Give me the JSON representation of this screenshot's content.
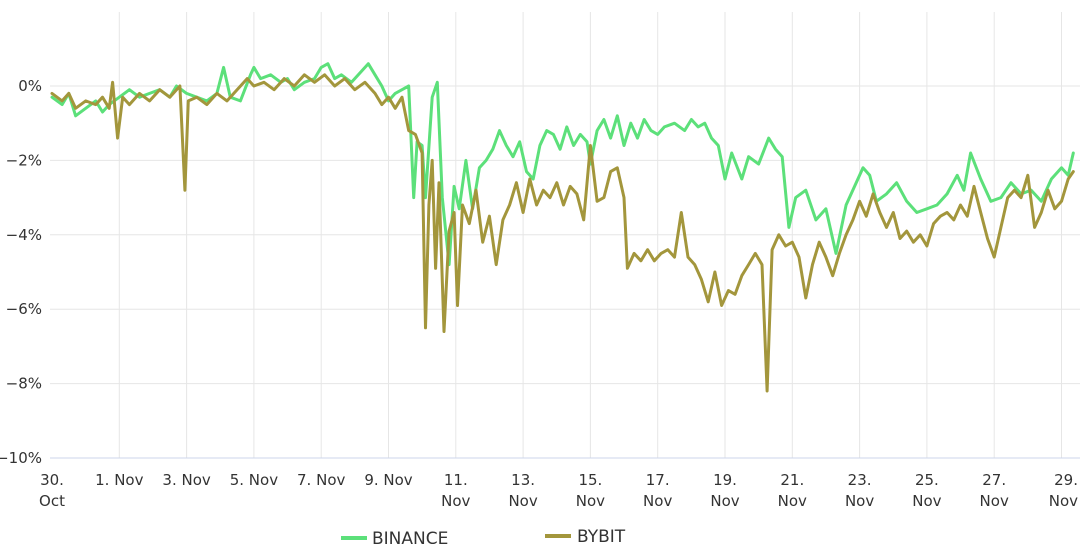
{
  "chart_data": {
    "type": "line",
    "title": "",
    "xlabel": "",
    "ylabel": "",
    "ylim": [
      -10,
      2
    ],
    "y_ticks": [
      0,
      -2,
      -4,
      -6,
      -8,
      -10
    ],
    "y_tick_labels": [
      "0%",
      "−2%",
      "−4%",
      "−6%",
      "−8%",
      "−10%"
    ],
    "x_ticks": [
      {
        "day": 0,
        "line1": "30.",
        "line2": "Oct"
      },
      {
        "day": 2,
        "line1": "1. Nov",
        "line2": ""
      },
      {
        "day": 4,
        "line1": "3. Nov",
        "line2": ""
      },
      {
        "day": 6,
        "line1": "5. Nov",
        "line2": ""
      },
      {
        "day": 8,
        "line1": "7. Nov",
        "line2": ""
      },
      {
        "day": 10,
        "line1": "9. Nov",
        "line2": ""
      },
      {
        "day": 12,
        "line1": "11.",
        "line2": "Nov"
      },
      {
        "day": 14,
        "line1": "13.",
        "line2": "Nov"
      },
      {
        "day": 16,
        "line1": "15.",
        "line2": "Nov"
      },
      {
        "day": 18,
        "line1": "17.",
        "line2": "Nov"
      },
      {
        "day": 20,
        "line1": "19.",
        "line2": "Nov"
      },
      {
        "day": 22,
        "line1": "21.",
        "line2": "Nov"
      },
      {
        "day": 24,
        "line1": "23.",
        "line2": "Nov"
      },
      {
        "day": 26,
        "line1": "25.",
        "line2": "Nov"
      },
      {
        "day": 28,
        "line1": "27.",
        "line2": "Nov"
      },
      {
        "day": 30,
        "line1": "29.",
        "line2": "Nov"
      }
    ],
    "grid": true,
    "legend": "bottom",
    "series": [
      {
        "name": "BINANCE",
        "color": "#5ce07a",
        "points": [
          [
            0.0,
            -0.3
          ],
          [
            0.3,
            -0.5
          ],
          [
            0.5,
            -0.2
          ],
          [
            0.7,
            -0.8
          ],
          [
            1.0,
            -0.6
          ],
          [
            1.3,
            -0.4
          ],
          [
            1.5,
            -0.7
          ],
          [
            1.7,
            -0.5
          ],
          [
            2.0,
            -0.3
          ],
          [
            2.3,
            -0.1
          ],
          [
            2.6,
            -0.3
          ],
          [
            2.9,
            -0.2
          ],
          [
            3.2,
            -0.1
          ],
          [
            3.5,
            -0.3
          ],
          [
            3.7,
            0.0
          ],
          [
            4.0,
            -0.2
          ],
          [
            4.3,
            -0.3
          ],
          [
            4.6,
            -0.4
          ],
          [
            4.9,
            -0.2
          ],
          [
            5.1,
            0.5
          ],
          [
            5.3,
            -0.3
          ],
          [
            5.6,
            -0.4
          ],
          [
            5.9,
            0.3
          ],
          [
            6.0,
            0.5
          ],
          [
            6.2,
            0.2
          ],
          [
            6.5,
            0.3
          ],
          [
            6.8,
            0.1
          ],
          [
            7.0,
            0.2
          ],
          [
            7.2,
            -0.1
          ],
          [
            7.5,
            0.1
          ],
          [
            7.8,
            0.2
          ],
          [
            8.0,
            0.5
          ],
          [
            8.2,
            0.6
          ],
          [
            8.4,
            0.2
          ],
          [
            8.6,
            0.3
          ],
          [
            8.9,
            0.1
          ],
          [
            9.2,
            0.4
          ],
          [
            9.4,
            0.6
          ],
          [
            9.6,
            0.3
          ],
          [
            9.8,
            0.0
          ],
          [
            10.0,
            -0.4
          ],
          [
            10.2,
            -0.2
          ],
          [
            10.4,
            -0.1
          ],
          [
            10.6,
            0.0
          ],
          [
            10.75,
            -3.0
          ],
          [
            10.85,
            -1.5
          ],
          [
            11.0,
            -1.6
          ],
          [
            11.1,
            -3.0
          ],
          [
            11.3,
            -0.3
          ],
          [
            11.45,
            0.1
          ],
          [
            11.6,
            -3.0
          ],
          [
            11.8,
            -4.8
          ],
          [
            11.95,
            -2.7
          ],
          [
            12.1,
            -3.3
          ],
          [
            12.3,
            -2.0
          ],
          [
            12.5,
            -3.3
          ],
          [
            12.7,
            -2.2
          ],
          [
            12.9,
            -2.0
          ],
          [
            13.1,
            -1.7
          ],
          [
            13.3,
            -1.2
          ],
          [
            13.5,
            -1.6
          ],
          [
            13.7,
            -1.9
          ],
          [
            13.9,
            -1.5
          ],
          [
            14.1,
            -2.3
          ],
          [
            14.3,
            -2.5
          ],
          [
            14.5,
            -1.6
          ],
          [
            14.7,
            -1.2
          ],
          [
            14.9,
            -1.3
          ],
          [
            15.1,
            -1.7
          ],
          [
            15.3,
            -1.1
          ],
          [
            15.5,
            -1.6
          ],
          [
            15.7,
            -1.3
          ],
          [
            15.9,
            -1.5
          ],
          [
            16.0,
            -2.1
          ],
          [
            16.2,
            -1.2
          ],
          [
            16.4,
            -0.9
          ],
          [
            16.6,
            -1.4
          ],
          [
            16.8,
            -0.8
          ],
          [
            17.0,
            -1.6
          ],
          [
            17.2,
            -1.0
          ],
          [
            17.4,
            -1.4
          ],
          [
            17.6,
            -0.9
          ],
          [
            17.8,
            -1.2
          ],
          [
            18.0,
            -1.3
          ],
          [
            18.2,
            -1.1
          ],
          [
            18.5,
            -1.0
          ],
          [
            18.8,
            -1.2
          ],
          [
            19.0,
            -0.9
          ],
          [
            19.2,
            -1.1
          ],
          [
            19.4,
            -1.0
          ],
          [
            19.6,
            -1.4
          ],
          [
            19.8,
            -1.6
          ],
          [
            20.0,
            -2.5
          ],
          [
            20.2,
            -1.8
          ],
          [
            20.5,
            -2.5
          ],
          [
            20.7,
            -1.9
          ],
          [
            21.0,
            -2.1
          ],
          [
            21.3,
            -1.4
          ],
          [
            21.5,
            -1.7
          ],
          [
            21.7,
            -1.9
          ],
          [
            21.9,
            -3.8
          ],
          [
            22.1,
            -3.0
          ],
          [
            22.4,
            -2.8
          ],
          [
            22.7,
            -3.6
          ],
          [
            23.0,
            -3.3
          ],
          [
            23.3,
            -4.5
          ],
          [
            23.6,
            -3.2
          ],
          [
            23.9,
            -2.6
          ],
          [
            24.1,
            -2.2
          ],
          [
            24.3,
            -2.4
          ],
          [
            24.5,
            -3.1
          ],
          [
            24.8,
            -2.9
          ],
          [
            25.1,
            -2.6
          ],
          [
            25.4,
            -3.1
          ],
          [
            25.7,
            -3.4
          ],
          [
            26.0,
            -3.3
          ],
          [
            26.3,
            -3.2
          ],
          [
            26.6,
            -2.9
          ],
          [
            26.9,
            -2.4
          ],
          [
            27.1,
            -2.8
          ],
          [
            27.3,
            -1.8
          ],
          [
            27.6,
            -2.5
          ],
          [
            27.9,
            -3.1
          ],
          [
            28.2,
            -3.0
          ],
          [
            28.5,
            -2.6
          ],
          [
            28.8,
            -2.9
          ],
          [
            29.1,
            -2.8
          ],
          [
            29.4,
            -3.1
          ],
          [
            29.7,
            -2.5
          ],
          [
            30.0,
            -2.2
          ],
          [
            30.2,
            -2.4
          ],
          [
            30.35,
            -1.8
          ]
        ]
      },
      {
        "name": "BYBIT",
        "color": "#a3963c",
        "points": [
          [
            0.0,
            -0.2
          ],
          [
            0.3,
            -0.4
          ],
          [
            0.5,
            -0.2
          ],
          [
            0.7,
            -0.6
          ],
          [
            1.0,
            -0.4
          ],
          [
            1.3,
            -0.5
          ],
          [
            1.5,
            -0.3
          ],
          [
            1.7,
            -0.6
          ],
          [
            1.8,
            0.1
          ],
          [
            1.95,
            -1.4
          ],
          [
            2.1,
            -0.3
          ],
          [
            2.3,
            -0.5
          ],
          [
            2.6,
            -0.2
          ],
          [
            2.9,
            -0.4
          ],
          [
            3.2,
            -0.1
          ],
          [
            3.5,
            -0.3
          ],
          [
            3.8,
            0.0
          ],
          [
            3.95,
            -2.8
          ],
          [
            4.05,
            -0.4
          ],
          [
            4.3,
            -0.3
          ],
          [
            4.6,
            -0.5
          ],
          [
            4.9,
            -0.2
          ],
          [
            5.2,
            -0.4
          ],
          [
            5.5,
            -0.1
          ],
          [
            5.8,
            0.2
          ],
          [
            6.0,
            0.0
          ],
          [
            6.3,
            0.1
          ],
          [
            6.6,
            -0.1
          ],
          [
            6.9,
            0.2
          ],
          [
            7.2,
            0.0
          ],
          [
            7.5,
            0.3
          ],
          [
            7.8,
            0.1
          ],
          [
            8.1,
            0.3
          ],
          [
            8.4,
            0.0
          ],
          [
            8.7,
            0.2
          ],
          [
            9.0,
            -0.1
          ],
          [
            9.3,
            0.1
          ],
          [
            9.6,
            -0.2
          ],
          [
            9.8,
            -0.5
          ],
          [
            10.0,
            -0.3
          ],
          [
            10.2,
            -0.6
          ],
          [
            10.4,
            -0.3
          ],
          [
            10.6,
            -1.2
          ],
          [
            10.8,
            -1.3
          ],
          [
            11.0,
            -1.8
          ],
          [
            11.1,
            -6.5
          ],
          [
            11.2,
            -3.2
          ],
          [
            11.3,
            -2.0
          ],
          [
            11.4,
            -4.9
          ],
          [
            11.5,
            -2.6
          ],
          [
            11.65,
            -6.6
          ],
          [
            11.8,
            -3.9
          ],
          [
            11.95,
            -3.4
          ],
          [
            12.05,
            -5.9
          ],
          [
            12.2,
            -3.2
          ],
          [
            12.4,
            -3.7
          ],
          [
            12.6,
            -2.8
          ],
          [
            12.8,
            -4.2
          ],
          [
            13.0,
            -3.5
          ],
          [
            13.2,
            -4.8
          ],
          [
            13.4,
            -3.6
          ],
          [
            13.6,
            -3.2
          ],
          [
            13.8,
            -2.6
          ],
          [
            14.0,
            -3.4
          ],
          [
            14.2,
            -2.5
          ],
          [
            14.4,
            -3.2
          ],
          [
            14.6,
            -2.8
          ],
          [
            14.8,
            -3.0
          ],
          [
            15.0,
            -2.6
          ],
          [
            15.2,
            -3.2
          ],
          [
            15.4,
            -2.7
          ],
          [
            15.6,
            -2.9
          ],
          [
            15.8,
            -3.6
          ],
          [
            16.0,
            -1.6
          ],
          [
            16.2,
            -3.1
          ],
          [
            16.4,
            -3.0
          ],
          [
            16.6,
            -2.3
          ],
          [
            16.8,
            -2.2
          ],
          [
            17.0,
            -3.0
          ],
          [
            17.1,
            -4.9
          ],
          [
            17.3,
            -4.5
          ],
          [
            17.5,
            -4.7
          ],
          [
            17.7,
            -4.4
          ],
          [
            17.9,
            -4.7
          ],
          [
            18.1,
            -4.5
          ],
          [
            18.3,
            -4.4
          ],
          [
            18.5,
            -4.6
          ],
          [
            18.7,
            -3.4
          ],
          [
            18.9,
            -4.6
          ],
          [
            19.1,
            -4.8
          ],
          [
            19.3,
            -5.2
          ],
          [
            19.5,
            -5.8
          ],
          [
            19.7,
            -5.0
          ],
          [
            19.9,
            -5.9
          ],
          [
            20.1,
            -5.5
          ],
          [
            20.3,
            -5.6
          ],
          [
            20.5,
            -5.1
          ],
          [
            20.7,
            -4.8
          ],
          [
            20.9,
            -4.5
          ],
          [
            21.1,
            -4.8
          ],
          [
            21.25,
            -8.2
          ],
          [
            21.4,
            -4.4
          ],
          [
            21.6,
            -4.0
          ],
          [
            21.8,
            -4.3
          ],
          [
            22.0,
            -4.2
          ],
          [
            22.2,
            -4.6
          ],
          [
            22.4,
            -5.7
          ],
          [
            22.6,
            -4.8
          ],
          [
            22.8,
            -4.2
          ],
          [
            23.0,
            -4.6
          ],
          [
            23.2,
            -5.1
          ],
          [
            23.4,
            -4.5
          ],
          [
            23.6,
            -4.0
          ],
          [
            23.8,
            -3.6
          ],
          [
            24.0,
            -3.1
          ],
          [
            24.2,
            -3.5
          ],
          [
            24.4,
            -2.9
          ],
          [
            24.6,
            -3.4
          ],
          [
            24.8,
            -3.8
          ],
          [
            25.0,
            -3.4
          ],
          [
            25.2,
            -4.1
          ],
          [
            25.4,
            -3.9
          ],
          [
            25.6,
            -4.2
          ],
          [
            25.8,
            -4.0
          ],
          [
            26.0,
            -4.3
          ],
          [
            26.2,
            -3.7
          ],
          [
            26.4,
            -3.5
          ],
          [
            26.6,
            -3.4
          ],
          [
            26.8,
            -3.6
          ],
          [
            27.0,
            -3.2
          ],
          [
            27.2,
            -3.5
          ],
          [
            27.4,
            -2.7
          ],
          [
            27.6,
            -3.4
          ],
          [
            27.8,
            -4.1
          ],
          [
            28.0,
            -4.6
          ],
          [
            28.2,
            -3.8
          ],
          [
            28.4,
            -3.0
          ],
          [
            28.6,
            -2.8
          ],
          [
            28.8,
            -3.0
          ],
          [
            29.0,
            -2.4
          ],
          [
            29.2,
            -3.8
          ],
          [
            29.4,
            -3.4
          ],
          [
            29.6,
            -2.8
          ],
          [
            29.8,
            -3.3
          ],
          [
            30.0,
            -3.1
          ],
          [
            30.2,
            -2.5
          ],
          [
            30.35,
            -2.3
          ]
        ]
      }
    ]
  }
}
